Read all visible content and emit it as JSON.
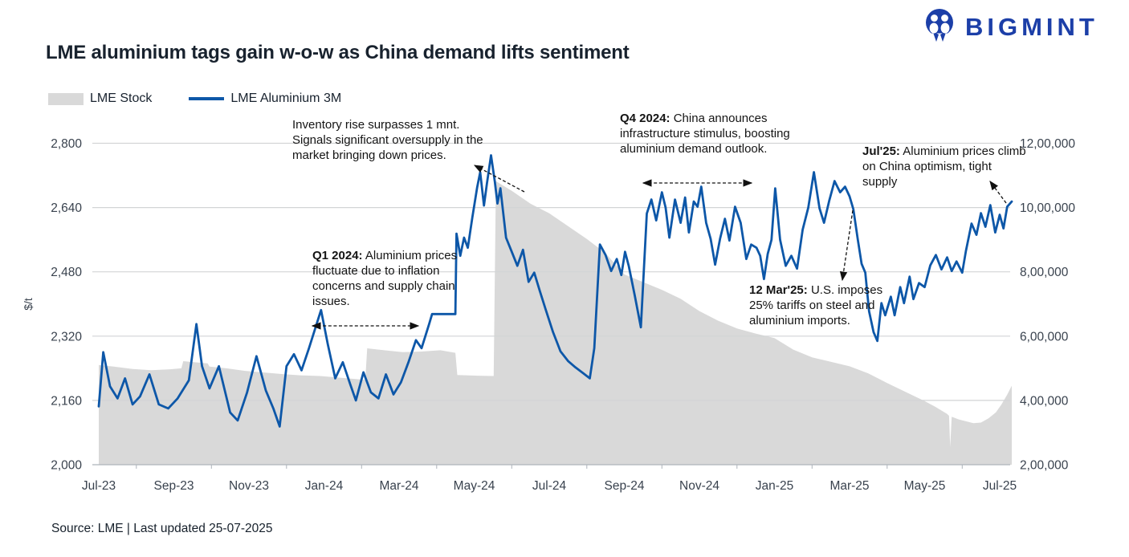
{
  "header": {
    "brand": "BIGMINT",
    "title": "LME aluminium tags gain w-o-w as China demand lifts sentiment"
  },
  "legend": {
    "items": [
      {
        "label": "LME Stock"
      },
      {
        "label": "LME Aluminium 3M"
      }
    ]
  },
  "footer": {
    "source": "Source: LME | Last updated 25-07-2025"
  },
  "colors": {
    "brand_blue": "#1c3fa8",
    "line_blue": "#0d57a8",
    "stock_gray": "#d9d9d9",
    "grid_gray": "#d2d4d6",
    "axis_text": "#39424e"
  },
  "chart_data": {
    "type": "combo",
    "description": "LME Stock (gray area, right axis, tonnes) and LME Aluminium 3M price (blue line, left axis, $/t) from Jul-23 to Jul-25, weekly approximation; x unit = months since Jul-23",
    "x_axis": {
      "labels": [
        "Jul-23",
        "Sep-23",
        "Nov-23",
        "Jan-24",
        "Mar-24",
        "May-24",
        "Jul-24",
        "Sep-24",
        "Nov-24",
        "Jan-25",
        "Mar-25",
        "May-25",
        "Jul-25"
      ],
      "label_positions": [
        0,
        2,
        4,
        6,
        8,
        10,
        12,
        14,
        16,
        18,
        20,
        22,
        24
      ],
      "range": [
        0,
        24.35
      ]
    },
    "left_axis": {
      "title": "$/t",
      "range": [
        2000,
        2800
      ],
      "ticks": [
        2000,
        2160,
        2320,
        2480,
        2640,
        2800
      ],
      "tick_labels": [
        "2,000",
        "2,160",
        "2,320",
        "2,480",
        "2,640",
        "2,800"
      ]
    },
    "right_axis": {
      "range": [
        200000,
        1200000
      ],
      "ticks": [
        200000,
        400000,
        600000,
        800000,
        1000000,
        1200000
      ],
      "tick_labels": [
        "2,00,000",
        "4,00,000",
        "6,00,000",
        "8,00,000",
        "10,00,000",
        "12,00,000"
      ]
    },
    "series": [
      {
        "name": "LME Stock",
        "type": "area",
        "axis": "right",
        "color": "#d9d9d9",
        "points": [
          [
            0,
            510000
          ],
          [
            0.4,
            505000
          ],
          [
            0.9,
            498000
          ],
          [
            1.4,
            494000
          ],
          [
            1.9,
            497000
          ],
          [
            2.2,
            500000
          ],
          [
            2.25,
            522000
          ],
          [
            2.9,
            515000
          ],
          [
            2.95,
            505000
          ],
          [
            3.4,
            500000
          ],
          [
            3.9,
            492000
          ],
          [
            4.4,
            487000
          ],
          [
            4.9,
            482000
          ],
          [
            5.4,
            478000
          ],
          [
            5.9,
            476000
          ],
          [
            6.4,
            471000
          ],
          [
            6.9,
            466000
          ],
          [
            7.1,
            464000
          ],
          [
            7.15,
            562000
          ],
          [
            7.6,
            556000
          ],
          [
            8.1,
            550000
          ],
          [
            8.6,
            552000
          ],
          [
            9.1,
            556000
          ],
          [
            9.5,
            548000
          ],
          [
            9.55,
            479000
          ],
          [
            10.1,
            477000
          ],
          [
            10.52,
            476000
          ],
          [
            10.58,
            1082000
          ],
          [
            11,
            1052000
          ],
          [
            11.5,
            1012000
          ],
          [
            12,
            982000
          ],
          [
            12.5,
            942000
          ],
          [
            13,
            902000
          ],
          [
            13.5,
            858000
          ],
          [
            14,
            792000
          ],
          [
            14.5,
            768000
          ],
          [
            15,
            744000
          ],
          [
            15.5,
            716000
          ],
          [
            16,
            678000
          ],
          [
            16.5,
            648000
          ],
          [
            17,
            624000
          ],
          [
            17.5,
            608000
          ],
          [
            18,
            594000
          ],
          [
            18.5,
            558000
          ],
          [
            19,
            534000
          ],
          [
            19.5,
            520000
          ],
          [
            20,
            506000
          ],
          [
            20.5,
            484000
          ],
          [
            21,
            454000
          ],
          [
            21.5,
            426000
          ],
          [
            22,
            398000
          ],
          [
            22.3,
            379000
          ],
          [
            22.6,
            358000
          ],
          [
            22.65,
            352000
          ],
          [
            22.68,
            255000
          ],
          [
            22.72,
            349000
          ],
          [
            22.9,
            341000
          ],
          [
            23.1,
            335000
          ],
          [
            23.3,
            329000
          ],
          [
            23.5,
            331000
          ],
          [
            23.7,
            344000
          ],
          [
            23.9,
            363000
          ],
          [
            24.05,
            388000
          ],
          [
            24.2,
            418000
          ],
          [
            24.32,
            446000
          ]
        ]
      },
      {
        "name": "LME Aluminium 3M",
        "type": "line",
        "axis": "left",
        "color": "#0d57a8",
        "points": [
          [
            0,
            2145
          ],
          [
            0.12,
            2280
          ],
          [
            0.3,
            2195
          ],
          [
            0.5,
            2165
          ],
          [
            0.7,
            2215
          ],
          [
            0.9,
            2150
          ],
          [
            1.1,
            2170
          ],
          [
            1.35,
            2225
          ],
          [
            1.6,
            2150
          ],
          [
            1.85,
            2140
          ],
          [
            2.1,
            2165
          ],
          [
            2.4,
            2210
          ],
          [
            2.6,
            2350
          ],
          [
            2.75,
            2245
          ],
          [
            2.95,
            2190
          ],
          [
            3.2,
            2245
          ],
          [
            3.5,
            2130
          ],
          [
            3.7,
            2110
          ],
          [
            3.95,
            2180
          ],
          [
            4.2,
            2270
          ],
          [
            4.45,
            2185
          ],
          [
            4.65,
            2140
          ],
          [
            4.82,
            2095
          ],
          [
            5,
            2245
          ],
          [
            5.2,
            2275
          ],
          [
            5.4,
            2235
          ],
          [
            5.6,
            2290
          ],
          [
            5.92,
            2385
          ],
          [
            6.1,
            2300
          ],
          [
            6.3,
            2215
          ],
          [
            6.5,
            2255
          ],
          [
            6.7,
            2200
          ],
          [
            6.85,
            2160
          ],
          [
            7.05,
            2230
          ],
          [
            7.25,
            2180
          ],
          [
            7.45,
            2165
          ],
          [
            7.65,
            2225
          ],
          [
            7.85,
            2175
          ],
          [
            8.05,
            2205
          ],
          [
            8.25,
            2255
          ],
          [
            8.45,
            2310
          ],
          [
            8.6,
            2290
          ],
          [
            8.8,
            2350
          ],
          [
            8.88,
            2375
          ],
          [
            9.5,
            2375
          ],
          [
            9.53,
            2575
          ],
          [
            9.63,
            2520
          ],
          [
            9.73,
            2565
          ],
          [
            9.83,
            2540
          ],
          [
            9.95,
            2615
          ],
          [
            10.08,
            2690
          ],
          [
            10.16,
            2728
          ],
          [
            10.26,
            2645
          ],
          [
            10.34,
            2700
          ],
          [
            10.45,
            2770
          ],
          [
            10.55,
            2705
          ],
          [
            10.62,
            2650
          ],
          [
            10.7,
            2688
          ],
          [
            10.85,
            2565
          ],
          [
            11,
            2530
          ],
          [
            11.15,
            2495
          ],
          [
            11.3,
            2535
          ],
          [
            11.45,
            2455
          ],
          [
            11.6,
            2478
          ],
          [
            11.75,
            2432
          ],
          [
            11.9,
            2388
          ],
          [
            12.1,
            2330
          ],
          [
            12.3,
            2282
          ],
          [
            12.5,
            2258
          ],
          [
            12.7,
            2242
          ],
          [
            12.9,
            2228
          ],
          [
            13.08,
            2215
          ],
          [
            13.2,
            2290
          ],
          [
            13.35,
            2548
          ],
          [
            13.5,
            2522
          ],
          [
            13.65,
            2482
          ],
          [
            13.8,
            2512
          ],
          [
            13.92,
            2472
          ],
          [
            14.02,
            2530
          ],
          [
            14.12,
            2494
          ],
          [
            14.28,
            2420
          ],
          [
            14.44,
            2342
          ],
          [
            14.6,
            2625
          ],
          [
            14.72,
            2660
          ],
          [
            14.85,
            2608
          ],
          [
            15,
            2678
          ],
          [
            15.1,
            2640
          ],
          [
            15.2,
            2565
          ],
          [
            15.35,
            2660
          ],
          [
            15.5,
            2602
          ],
          [
            15.62,
            2665
          ],
          [
            15.72,
            2578
          ],
          [
            15.85,
            2655
          ],
          [
            15.95,
            2642
          ],
          [
            16.05,
            2692
          ],
          [
            16.18,
            2602
          ],
          [
            16.3,
            2562
          ],
          [
            16.42,
            2498
          ],
          [
            16.55,
            2562
          ],
          [
            16.68,
            2612
          ],
          [
            16.8,
            2558
          ],
          [
            16.95,
            2642
          ],
          [
            17.1,
            2602
          ],
          [
            17.25,
            2512
          ],
          [
            17.38,
            2548
          ],
          [
            17.52,
            2540
          ],
          [
            17.62,
            2520
          ],
          [
            17.72,
            2462
          ],
          [
            17.82,
            2525
          ],
          [
            17.92,
            2560
          ],
          [
            18.02,
            2688
          ],
          [
            18.15,
            2560
          ],
          [
            18.3,
            2495
          ],
          [
            18.45,
            2520
          ],
          [
            18.6,
            2488
          ],
          [
            18.75,
            2585
          ],
          [
            18.9,
            2640
          ],
          [
            19.05,
            2728
          ],
          [
            19.2,
            2638
          ],
          [
            19.32,
            2602
          ],
          [
            19.46,
            2658
          ],
          [
            19.6,
            2706
          ],
          [
            19.75,
            2678
          ],
          [
            19.88,
            2692
          ],
          [
            20,
            2668
          ],
          [
            20.1,
            2636
          ],
          [
            20.22,
            2560
          ],
          [
            20.32,
            2500
          ],
          [
            20.42,
            2478
          ],
          [
            20.52,
            2382
          ],
          [
            20.64,
            2330
          ],
          [
            20.74,
            2308
          ],
          [
            20.85,
            2402
          ],
          [
            20.95,
            2372
          ],
          [
            21.1,
            2418
          ],
          [
            21.2,
            2372
          ],
          [
            21.35,
            2442
          ],
          [
            21.45,
            2402
          ],
          [
            21.6,
            2468
          ],
          [
            21.7,
            2412
          ],
          [
            21.85,
            2452
          ],
          [
            22,
            2442
          ],
          [
            22.15,
            2496
          ],
          [
            22.3,
            2522
          ],
          [
            22.45,
            2486
          ],
          [
            22.6,
            2516
          ],
          [
            22.72,
            2482
          ],
          [
            22.85,
            2506
          ],
          [
            23,
            2478
          ],
          [
            23.1,
            2532
          ],
          [
            23.25,
            2600
          ],
          [
            23.38,
            2572
          ],
          [
            23.5,
            2626
          ],
          [
            23.62,
            2592
          ],
          [
            23.75,
            2646
          ],
          [
            23.88,
            2578
          ],
          [
            24,
            2622
          ],
          [
            24.1,
            2588
          ],
          [
            24.2,
            2642
          ],
          [
            24.32,
            2655
          ]
        ]
      }
    ],
    "annotations": [
      {
        "id": "inventory",
        "bold": "",
        "text": "Inventory rise surpasses 1 mnt. Signals significant oversupply in the market bringing down prices."
      },
      {
        "id": "q1_2024",
        "bold": "Q1 2024:",
        "text": " Aluminium prices fluctuate due to inflation concerns and supply chain issues."
      },
      {
        "id": "q4_2024",
        "bold": "Q4 2024:",
        "text": " China announces infrastructure stimulus, boosting aluminium demand outlook."
      },
      {
        "id": "jul_25",
        "bold": "Jul'25:",
        "text": " Aluminium prices climb on China optimism, tight supply"
      },
      {
        "id": "mar_25",
        "bold": "12 Mar'25:",
        "text": " U.S. imposes 25% tariffs on steel and aluminium imports."
      }
    ],
    "legend_position": "top-left",
    "grid": "horizontal"
  }
}
